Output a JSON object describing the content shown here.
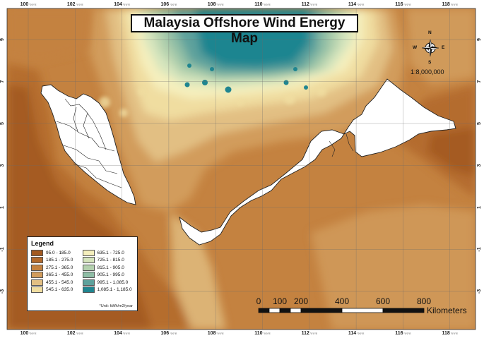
{
  "map": {
    "title": "Malaysia Offshore Wind Energy Map",
    "scale_ratio": "1:8,000,000",
    "scale_bar": {
      "labels": [
        "0",
        "100",
        "200",
        "400",
        "600",
        "800"
      ],
      "unit": "Kilometers"
    },
    "north_arrow": {
      "n": "N",
      "s": "S",
      "e": "E",
      "w": "W"
    },
    "graticule": {
      "x_ticks": [
        "100",
        "102",
        "104",
        "106",
        "108",
        "110",
        "112",
        "114",
        "116",
        "118"
      ],
      "y_ticks": [
        "9",
        "7",
        "5",
        "3",
        "1",
        "-1",
        "-3"
      ],
      "tick_unit_text": "°0'0\"E"
    },
    "legend": {
      "title": "Legend",
      "unit_note": "*Unit: kWh/m2/year",
      "classes": [
        {
          "label": "95.0 - 185.0",
          "color": "#a35a20"
        },
        {
          "label": "185.1 - 275.0",
          "color": "#b36a2c"
        },
        {
          "label": "275.1 - 365.0",
          "color": "#c48240"
        },
        {
          "label": "365.1 - 455.0",
          "color": "#d29c5c"
        },
        {
          "label": "455.1 - 545.0",
          "color": "#e2bf83"
        },
        {
          "label": "545.1 - 635.0",
          "color": "#f0dda0"
        },
        {
          "label": "635.1 - 725.0",
          "color": "#f5efbd"
        },
        {
          "label": "725.1 - 815.0",
          "color": "#d6e5bd"
        },
        {
          "label": "815.1 - 905.0",
          "color": "#b4d1ae"
        },
        {
          "label": "905.1 - 995.0",
          "color": "#8fbda5"
        },
        {
          "label": "995.1 - 1,085.0",
          "color": "#5da19c"
        },
        {
          "label": "1,085.1 - 1,185.0",
          "color": "#1f8590"
        }
      ]
    }
  }
}
